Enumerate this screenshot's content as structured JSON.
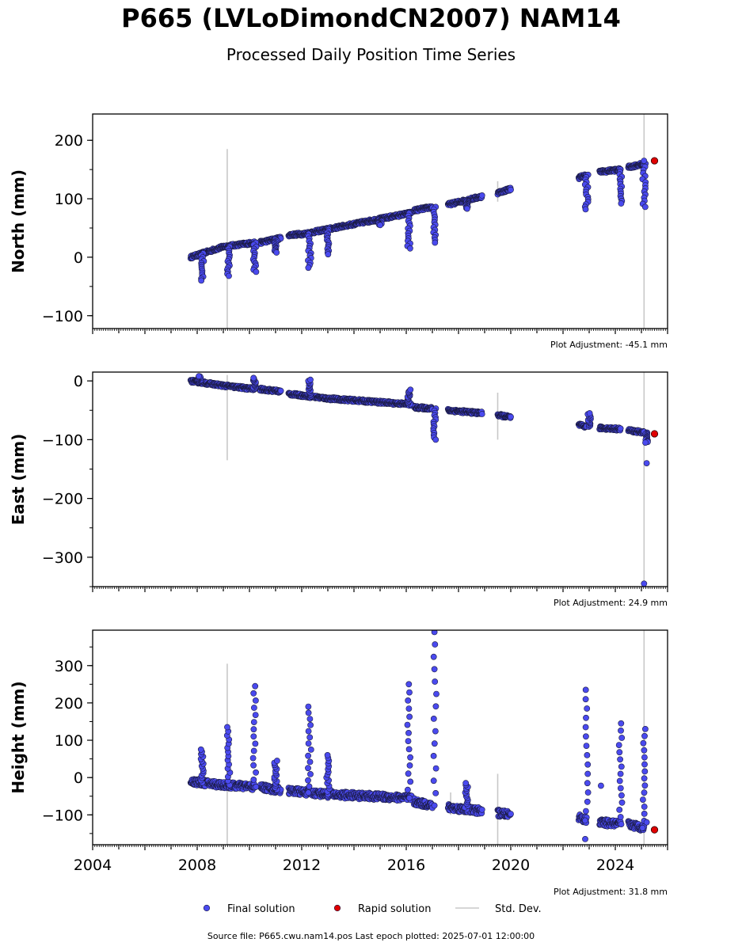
{
  "title": "P665 (LVLoDimondCN2007) NAM14",
  "subtitle": "Processed Daily Position Time Series",
  "footer": "Source file: P665.cwu.nam14.pos  Last epoch plotted: 2025-07-01 12:00:00",
  "colors": {
    "final": "#4a4aef",
    "rapid": "#e00000",
    "std": "#c8c8c8",
    "edge": "#1a1a40"
  },
  "legend": [
    {
      "label": "Final solution",
      "marker": "dot",
      "color": "#4a4aef"
    },
    {
      "label": "Rapid solution",
      "marker": "dot",
      "color": "#e00000"
    },
    {
      "label": "Std. Dev.",
      "marker": "line",
      "color": "#c8c8c8"
    }
  ],
  "chart_data": [
    {
      "type": "scatter",
      "ylabel": "North (mm)",
      "adjustment": "Plot Adjustment: -45.1 mm",
      "xlim": [
        2004,
        2026
      ],
      "ylim": [
        -122,
        245
      ],
      "yticks": [
        200,
        100,
        0,
        -100
      ],
      "ytick_labels": [
        "200",
        "100",
        "0",
        "−100"
      ],
      "xticks": [
        2004,
        2008,
        2012,
        2016,
        2020,
        2024
      ],
      "xtick_labels": [],
      "trend": {
        "segments": [
          {
            "x0": 2007.75,
            "x1": 2009.0,
            "y0": 0,
            "y1": 18
          },
          {
            "x0": 2009.0,
            "x1": 2010.2,
            "y0": 18,
            "y1": 25
          },
          {
            "x0": 2010.4,
            "x1": 2011.2,
            "y0": 25,
            "y1": 33
          },
          {
            "x0": 2011.5,
            "x1": 2012.1,
            "y0": 38,
            "y1": 40
          },
          {
            "x0": 2012.1,
            "x1": 2013.0,
            "y0": 40,
            "y1": 48
          },
          {
            "x0": 2013.0,
            "x1": 2016.2,
            "y0": 48,
            "y1": 76
          },
          {
            "x0": 2016.3,
            "x1": 2017.0,
            "y0": 80,
            "y1": 86
          },
          {
            "x0": 2017.6,
            "x1": 2018.9,
            "y0": 90,
            "y1": 104
          },
          {
            "x0": 2019.5,
            "x1": 2020.0,
            "y0": 110,
            "y1": 117
          },
          {
            "x0": 2022.6,
            "x1": 2022.9,
            "y0": 136,
            "y1": 141
          },
          {
            "x0": 2023.4,
            "x1": 2024.2,
            "y0": 146,
            "y1": 150
          },
          {
            "x0": 2024.5,
            "x1": 2025.1,
            "y0": 154,
            "y1": 160
          }
        ],
        "dips": [
          {
            "x": 2008.2,
            "min": -40
          },
          {
            "x": 2009.2,
            "min": -32
          },
          {
            "x": 2010.2,
            "min": -25
          },
          {
            "x": 2011.0,
            "min": 8
          },
          {
            "x": 2012.3,
            "min": -18
          },
          {
            "x": 2013.0,
            "min": 5
          },
          {
            "x": 2015.0,
            "min": 55
          },
          {
            "x": 2016.1,
            "min": 15
          },
          {
            "x": 2017.1,
            "min": 25
          },
          {
            "x": 2018.3,
            "min": 83
          },
          {
            "x": 2022.9,
            "min": 82
          },
          {
            "x": 2024.2,
            "min": 92
          },
          {
            "x": 2025.1,
            "min": 86
          }
        ]
      },
      "rapid": [
        {
          "x": 2025.5,
          "y": 165
        }
      ],
      "stddev": [
        {
          "x": 2009.15,
          "y0": -122,
          "y1": 185
        },
        {
          "x": 2019.5,
          "y0": 95,
          "y1": 130
        },
        {
          "x": 2025.1,
          "y0": -122,
          "y1": 245
        }
      ],
      "extra_points": [
        {
          "x": 2025.1,
          "y": 165
        }
      ]
    },
    {
      "type": "scatter",
      "ylabel": "East (mm)",
      "adjustment": "Plot Adjustment: 24.9 mm",
      "xlim": [
        2004,
        2026
      ],
      "ylim": [
        -350,
        15
      ],
      "yticks": [
        0,
        -100,
        -200,
        -300
      ],
      "ytick_labels": [
        "0",
        "−100",
        "−200",
        "−300"
      ],
      "xticks": [
        2004,
        2008,
        2012,
        2016,
        2020,
        2024
      ],
      "xtick_labels": [],
      "trend": {
        "segments": [
          {
            "x0": 2007.75,
            "x1": 2009.0,
            "y0": 0,
            "y1": -8
          },
          {
            "x0": 2009.0,
            "x1": 2010.2,
            "y0": -8,
            "y1": -14
          },
          {
            "x0": 2010.4,
            "x1": 2011.2,
            "y0": -14,
            "y1": -18
          },
          {
            "x0": 2011.5,
            "x1": 2013.0,
            "y0": -22,
            "y1": -30
          },
          {
            "x0": 2013.0,
            "x1": 2016.2,
            "y0": -30,
            "y1": -40
          },
          {
            "x0": 2016.3,
            "x1": 2017.0,
            "y0": -45,
            "y1": -47
          },
          {
            "x0": 2017.6,
            "x1": 2018.9,
            "y0": -50,
            "y1": -55
          },
          {
            "x0": 2019.5,
            "x1": 2020.0,
            "y0": -58,
            "y1": -62
          },
          {
            "x0": 2022.6,
            "x1": 2022.9,
            "y0": -75,
            "y1": -78
          },
          {
            "x0": 2023.4,
            "x1": 2024.2,
            "y0": -80,
            "y1": -82
          },
          {
            "x0": 2024.5,
            "x1": 2025.1,
            "y0": -84,
            "y1": -88
          }
        ],
        "dips": [
          {
            "x": 2008.1,
            "min": 8,
            "up": true
          },
          {
            "x": 2010.2,
            "min": 5,
            "up": true
          },
          {
            "x": 2012.3,
            "min": 2,
            "up": true
          },
          {
            "x": 2016.1,
            "min": -15,
            "up": true
          },
          {
            "x": 2017.1,
            "min": -100
          },
          {
            "x": 2023.0,
            "min": -55,
            "up": true
          },
          {
            "x": 2025.2,
            "min": -105
          }
        ]
      },
      "rapid": [
        {
          "x": 2025.5,
          "y": -90
        }
      ],
      "stddev": [
        {
          "x": 2009.15,
          "y0": -135,
          "y1": 10
        },
        {
          "x": 2019.5,
          "y0": -100,
          "y1": -20
        },
        {
          "x": 2025.1,
          "y0": -350,
          "y1": 15
        }
      ],
      "extra_points": [
        {
          "x": 2025.2,
          "y": -140
        },
        {
          "x": 2025.1,
          "y": -345
        }
      ]
    },
    {
      "type": "scatter",
      "ylabel": "Height (mm)",
      "adjustment": "Plot Adjustment: 31.8 mm",
      "xlim": [
        2004,
        2026
      ],
      "ylim": [
        -180,
        395
      ],
      "yticks": [
        300,
        200,
        100,
        0,
        -100
      ],
      "ytick_labels": [
        "300",
        "200",
        "100",
        "0",
        "−100"
      ],
      "xticks": [
        2004,
        2008,
        2012,
        2016,
        2020,
        2024
      ],
      "xtick_labels": [
        "2004",
        "2008",
        "2012",
        "2016",
        "2020",
        "2024"
      ],
      "trend": {
        "segments": [
          {
            "x0": 2007.75,
            "x1": 2009.0,
            "y0": -10,
            "y1": -20
          },
          {
            "x0": 2009.0,
            "x1": 2010.2,
            "y0": -20,
            "y1": -25
          },
          {
            "x0": 2010.4,
            "x1": 2011.2,
            "y0": -25,
            "y1": -35
          },
          {
            "x0": 2011.5,
            "x1": 2013.0,
            "y0": -35,
            "y1": -45
          },
          {
            "x0": 2013.0,
            "x1": 2016.2,
            "y0": -45,
            "y1": -55
          },
          {
            "x0": 2016.3,
            "x1": 2017.0,
            "y0": -65,
            "y1": -75
          },
          {
            "x0": 2017.6,
            "x1": 2018.9,
            "y0": -80,
            "y1": -90
          },
          {
            "x0": 2019.5,
            "x1": 2020.0,
            "y0": -95,
            "y1": -100
          },
          {
            "x0": 2022.6,
            "x1": 2022.9,
            "y0": -105,
            "y1": -115
          },
          {
            "x0": 2023.4,
            "x1": 2024.2,
            "y0": -120,
            "y1": -125
          },
          {
            "x0": 2024.5,
            "x1": 2025.1,
            "y0": -125,
            "y1": -135
          }
        ],
        "dips": [
          {
            "x": 2008.2,
            "min": 75,
            "up": true
          },
          {
            "x": 2009.2,
            "min": 135,
            "up": true
          },
          {
            "x": 2010.2,
            "min": 245,
            "up": true
          },
          {
            "x": 2011.0,
            "min": 45,
            "up": true
          },
          {
            "x": 2012.3,
            "min": 190,
            "up": true
          },
          {
            "x": 2013.0,
            "min": 60,
            "up": true
          },
          {
            "x": 2016.1,
            "min": 250,
            "up": true
          },
          {
            "x": 2017.1,
            "min": 390,
            "up": true
          },
          {
            "x": 2018.3,
            "min": -15,
            "up": true
          },
          {
            "x": 2022.9,
            "min": 235,
            "up": true
          },
          {
            "x": 2024.2,
            "min": 145,
            "up": true
          },
          {
            "x": 2025.1,
            "min": 130,
            "up": true
          }
        ]
      },
      "rapid": [
        {
          "x": 2025.5,
          "y": -140
        }
      ],
      "stddev": [
        {
          "x": 2009.15,
          "y0": -180,
          "y1": 305
        },
        {
          "x": 2017.7,
          "y0": -100,
          "y1": -40
        },
        {
          "x": 2019.5,
          "y0": -180,
          "y1": 10
        },
        {
          "x": 2025.1,
          "y0": -180,
          "y1": 395
        }
      ],
      "extra_points": [
        {
          "x": 2023.45,
          "y": -22
        },
        {
          "x": 2022.85,
          "y": -165
        },
        {
          "x": 2025.2,
          "y": -120
        }
      ]
    }
  ]
}
